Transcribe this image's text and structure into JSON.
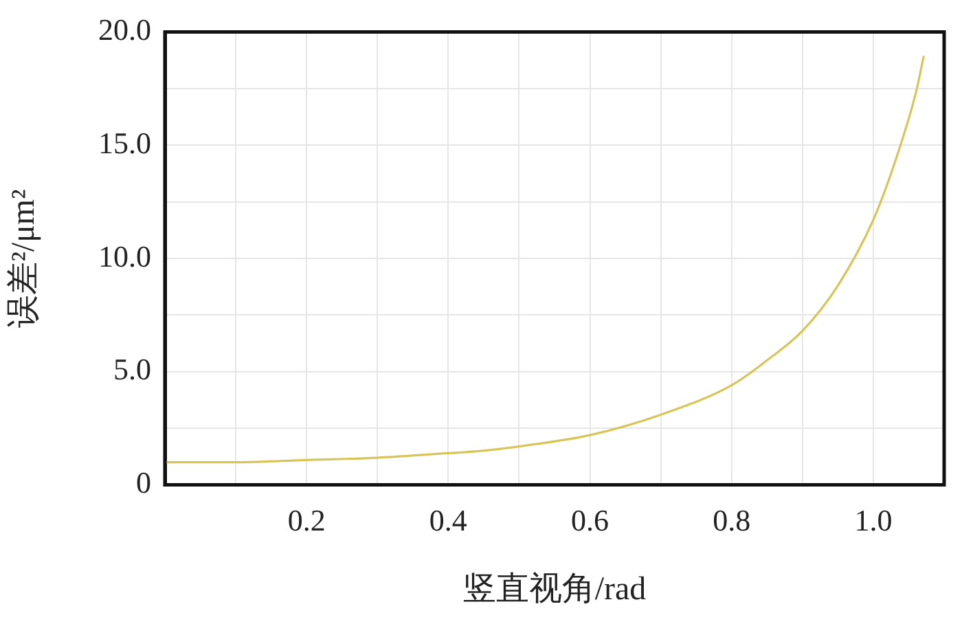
{
  "chart_data": {
    "type": "line",
    "xlabel": "竖直视角/rad",
    "ylabel": "误差²/μm²",
    "series": [
      {
        "color": "#d8c55a",
        "x": [
          0,
          0.1,
          0.2,
          0.3,
          0.4,
          0.447,
          0.5,
          0.6,
          0.7,
          0.8,
          0.85,
          0.9,
          0.95,
          1.0,
          1.03,
          1.06,
          1.071
        ],
        "values": [
          1.0,
          1.0,
          1.1,
          1.2,
          1.4,
          1.5,
          1.7,
          2.2,
          3.1,
          4.4,
          5.5,
          6.8,
          8.8,
          11.7,
          14.2,
          17.3,
          18.9
        ]
      }
    ],
    "xlim": [
      0,
      1.1
    ],
    "xticks": [
      {
        "value": 0.1,
        "label": null
      },
      0.2,
      {
        "value": 0.3,
        "label": null
      },
      0.4,
      {
        "value": 0.5,
        "label": null
      },
      0.6,
      {
        "value": 0.7,
        "label": null
      },
      0.8,
      {
        "value": 0.9,
        "label": null
      },
      {
        "value": 1.0,
        "label": "1.0"
      }
    ],
    "ylim": [
      0,
      20
    ],
    "yticks": [
      0,
      {
        "value": 2.5,
        "label": null
      },
      {
        "value": 5,
        "label": "5.0"
      },
      {
        "value": 7.5,
        "label": null
      },
      {
        "value": 10,
        "label": "10.0"
      },
      {
        "value": 12.5,
        "label": null
      },
      {
        "value": 15,
        "label": "15.0"
      },
      {
        "value": 17.5,
        "label": null
      },
      {
        "value": 20,
        "label": "20.0"
      }
    ],
    "grid": true,
    "legend": false,
    "marker": "none",
    "line_style": "solid"
  }
}
